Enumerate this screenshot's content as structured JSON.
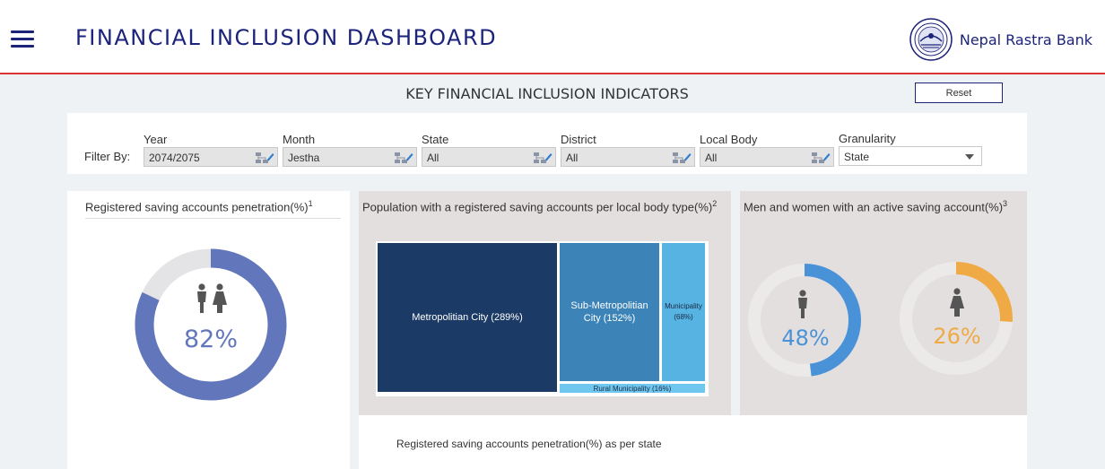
{
  "header": {
    "title": "FINANCIAL INCLUSION DASHBOARD",
    "brand_name": "Nepal Rastra Bank"
  },
  "section_title": "KEY FINANCIAL INCLUSION INDICATORS",
  "reset_label": "Reset",
  "filters": {
    "prefix": "Filter By:",
    "items": [
      {
        "label": "Year",
        "value": "2074/2075"
      },
      {
        "label": "Month",
        "value": "Jestha"
      },
      {
        "label": "State",
        "value": "All"
      },
      {
        "label": "District",
        "value": "All"
      },
      {
        "label": "Local Body",
        "value": "All"
      },
      {
        "label": "Granularity",
        "value": "State"
      }
    ]
  },
  "cards": {
    "penetration": {
      "title": "Registered saving accounts penetration(%)",
      "footnote": "1",
      "value_label": "82%",
      "value": 82,
      "color": "#6277bb"
    },
    "local_body": {
      "title": "Population with a registered saving accounts per local body type(%)",
      "footnote": "2",
      "cells": [
        {
          "label": "Metropolitian City (289%)",
          "value": 289,
          "color": "#1b3a66"
        },
        {
          "label": "Sub-Metropolitian City (152%)",
          "value": 152,
          "color": "#3c83b7"
        },
        {
          "label": "Municipality (68%)",
          "value": 68,
          "color": "#56b3e2"
        },
        {
          "label": "Rural Municipality (16%)",
          "value": 16,
          "color": "#6fc7ef"
        }
      ]
    },
    "gender": {
      "title": "Men and women with an active saving account(%)",
      "footnote": "3",
      "men": {
        "value_label": "48%",
        "value": 48,
        "color": "#4a92d8"
      },
      "women": {
        "value_label": "26%",
        "value": 26,
        "color": "#f0aa45"
      }
    },
    "state": {
      "title": "Registered saving accounts penetration(%) as per state"
    }
  }
}
